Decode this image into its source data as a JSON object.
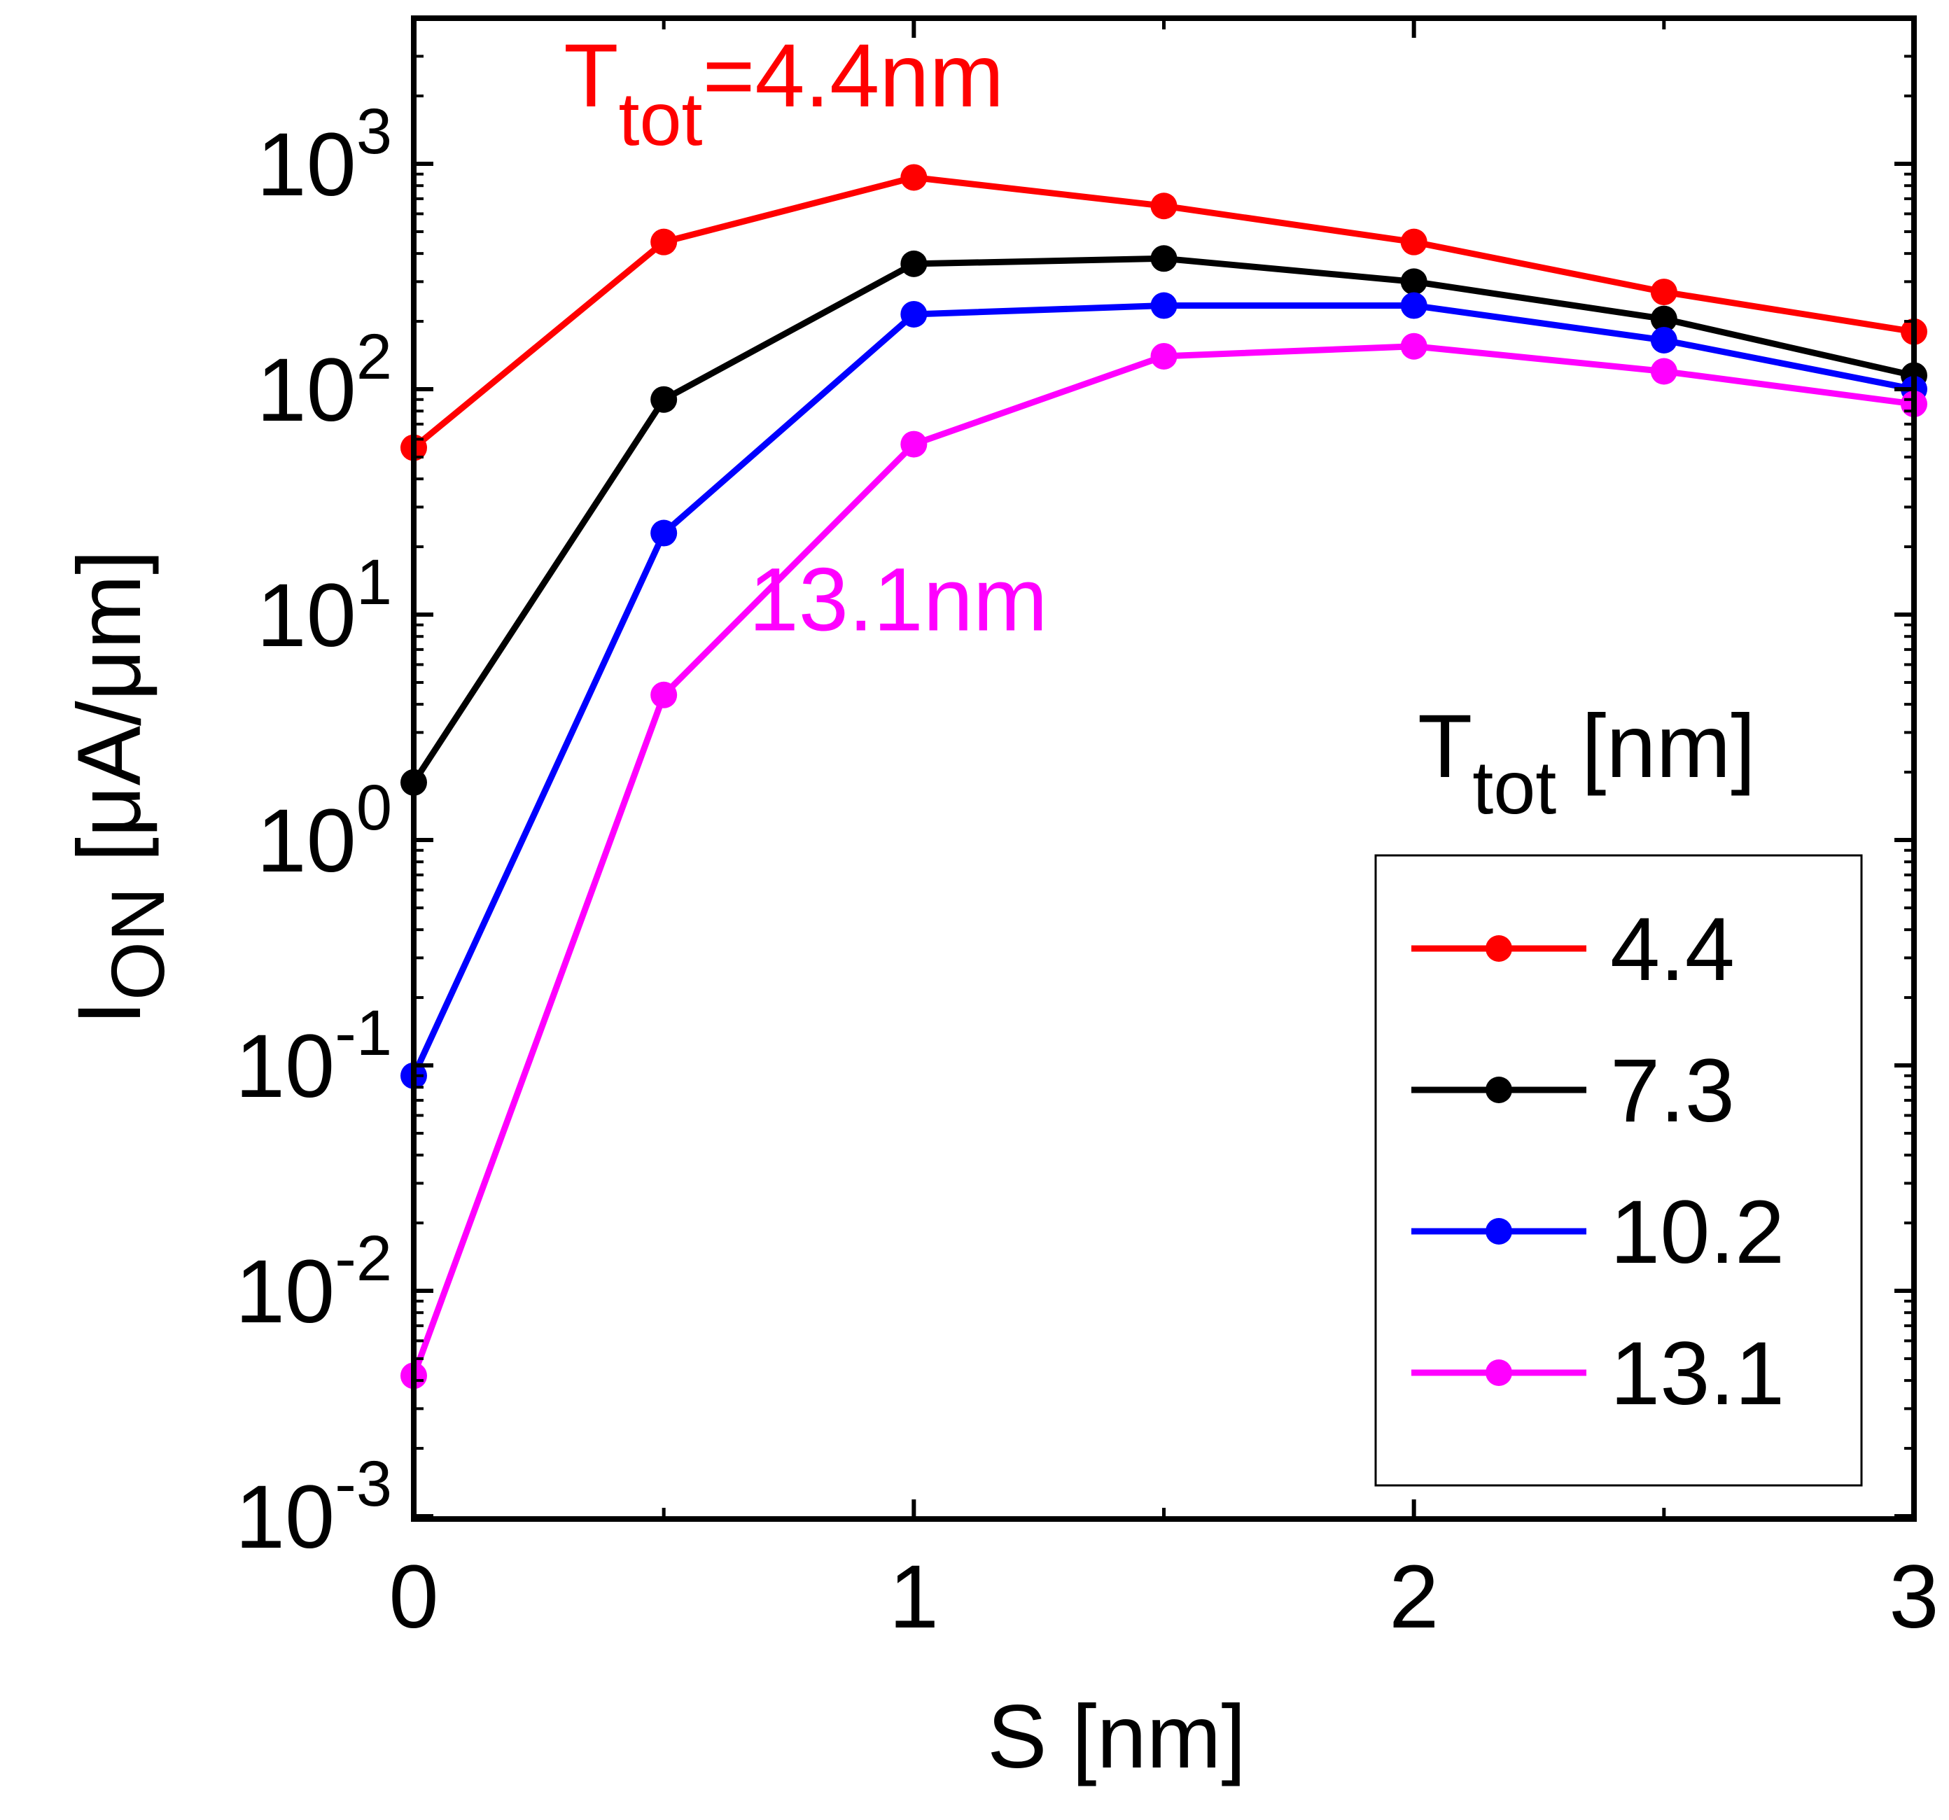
{
  "chart_data": {
    "type": "line",
    "title": "",
    "xlabel": "S [nm]",
    "ylabel_main": "I",
    "ylabel_sub": "ON",
    "ylabel_unit": " [μA/μm]",
    "yscale": "log",
    "xlim": [
      0,
      3
    ],
    "ylim": [
      0.001,
      3000
    ],
    "grid": false,
    "x": [
      0,
      0.5,
      1,
      1.5,
      2,
      2.5,
      3
    ],
    "x_ticks": [
      {
        "value": 0,
        "label": "0"
      },
      {
        "value": 1,
        "label": "1"
      },
      {
        "value": 2,
        "label": "2"
      },
      {
        "value": 3,
        "label": "3"
      }
    ],
    "y_ticks": [
      {
        "value": 0.001,
        "base": "10",
        "exp": "-3"
      },
      {
        "value": 0.01,
        "base": "10",
        "exp": "-2"
      },
      {
        "value": 0.1,
        "base": "10",
        "exp": "-1"
      },
      {
        "value": 1,
        "base": "10",
        "exp": "0"
      },
      {
        "value": 10,
        "base": "10",
        "exp": "1"
      },
      {
        "value": 100,
        "base": "10",
        "exp": "2"
      },
      {
        "value": 1000,
        "base": "10",
        "exp": "3"
      }
    ],
    "series": [
      {
        "name": "4.4",
        "color": "#ff0000",
        "values": [
          55,
          450,
          870,
          650,
          450,
          270,
          180
        ]
      },
      {
        "name": "7.3",
        "color": "#000000",
        "values": [
          1.8,
          90,
          360,
          380,
          300,
          205,
          115
        ]
      },
      {
        "name": "10.2",
        "color": "#0000ff",
        "values": [
          0.09,
          23,
          215,
          235,
          235,
          165,
          100
        ]
      },
      {
        "name": "13.1",
        "color": "#ff00ff",
        "values": [
          0.0042,
          4.4,
          57,
          140,
          155,
          120,
          86
        ]
      }
    ],
    "legend": {
      "title_main": "T",
      "title_sub": "tot",
      "title_unit": " [nm]",
      "position": "bottom-right"
    },
    "annotations": [
      {
        "id": "top",
        "main": "T",
        "sub": "tot",
        "rest": "=4.4nm",
        "color": "#ff0000",
        "x": 0.3,
        "y": 1800
      },
      {
        "id": "mid",
        "main": "13.1nm",
        "sub": "",
        "rest": "",
        "color": "#ff00ff",
        "x": 0.67,
        "y": 8.5
      }
    ]
  }
}
